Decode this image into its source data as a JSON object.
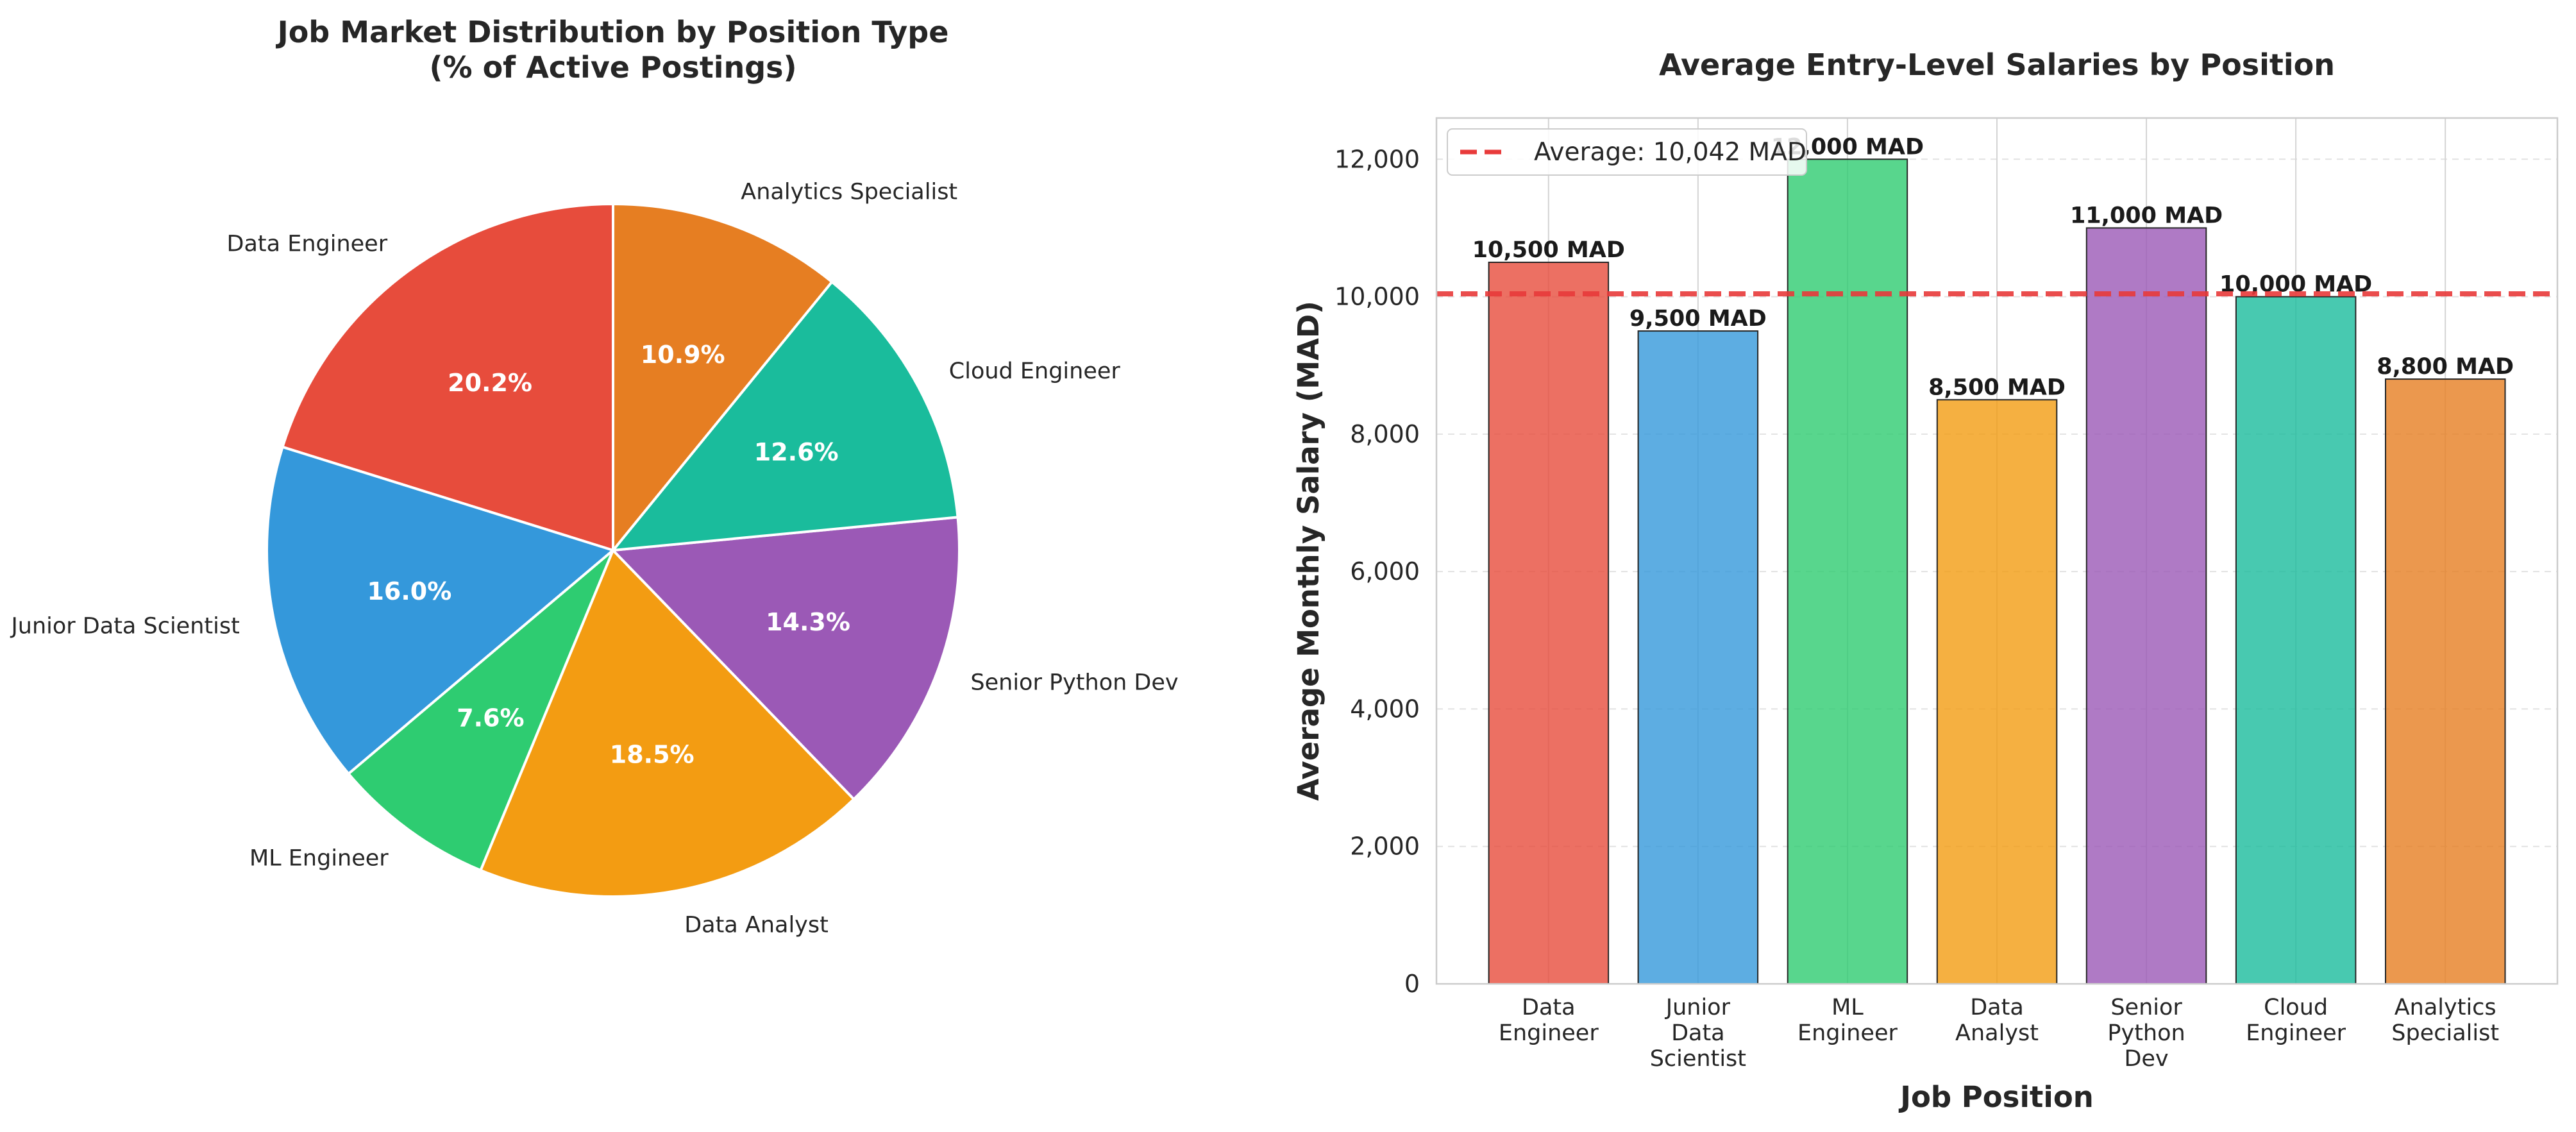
{
  "chart_data": [
    {
      "type": "pie",
      "title": "Job Market Distribution by Position Type",
      "subtitle": "(% of Active Postings)",
      "slices": [
        {
          "label": "Data Engineer",
          "value": 20.2,
          "pct_label": "20.2%",
          "color": "#e74c3c"
        },
        {
          "label": "Junior Data Scientist",
          "value": 16.0,
          "pct_label": "16.0%",
          "color": "#3498db"
        },
        {
          "label": "ML Engineer",
          "value": 7.6,
          "pct_label": "7.6%",
          "color": "#2ecc71"
        },
        {
          "label": "Data Analyst",
          "value": 18.5,
          "pct_label": "18.5%",
          "color": "#f39c12"
        },
        {
          "label": "Senior Python Dev",
          "value": 14.3,
          "pct_label": "14.3%",
          "color": "#9b59b6"
        },
        {
          "label": "Cloud Engineer",
          "value": 12.6,
          "pct_label": "12.6%",
          "color": "#1abc9c"
        },
        {
          "label": "Analytics Specialist",
          "value": 10.9,
          "pct_label": "10.9%",
          "color": "#e67e22"
        }
      ],
      "start_angle_deg": 90,
      "direction": "counterclockwise"
    },
    {
      "type": "bar",
      "title": "Average Entry-Level Salaries by Position",
      "xlabel": "Job Position",
      "ylabel": "Average Monthly Salary (MAD)",
      "ylim": [
        0,
        12600
      ],
      "yticks": [
        {
          "value": 0,
          "label": "0"
        },
        {
          "value": 2000,
          "label": "2,000"
        },
        {
          "value": 4000,
          "label": "4,000"
        },
        {
          "value": 6000,
          "label": "6,000"
        },
        {
          "value": 8000,
          "label": "8,000"
        },
        {
          "value": 10000,
          "label": "10,000"
        },
        {
          "value": 12000,
          "label": "12,000"
        }
      ],
      "categories": [
        [
          "Data",
          "Engineer"
        ],
        [
          "Junior",
          "Data",
          "Scientist"
        ],
        [
          "ML",
          "Engineer"
        ],
        [
          "Data",
          "Analyst"
        ],
        [
          "Senior",
          "Python",
          "Dev"
        ],
        [
          "Cloud",
          "Engineer"
        ],
        [
          "Analytics",
          "Specialist"
        ]
      ],
      "values": [
        10500,
        9500,
        12000,
        8500,
        11000,
        10000,
        8800
      ],
      "value_labels": [
        "10,500 MAD",
        "9,500 MAD",
        "12,000 MAD",
        "8,500 MAD",
        "11,000 MAD",
        "10,000 MAD",
        "8,800 MAD"
      ],
      "colors": [
        "#e74c3c",
        "#3498db",
        "#2ecc71",
        "#f39c12",
        "#9b59b6",
        "#1abc9c",
        "#e67e22"
      ],
      "average_line": {
        "value": 10042,
        "label": "Average: 10,042 MAD",
        "color": "#e83a3a"
      },
      "legend_position": "upper-left",
      "grid": true
    }
  ]
}
